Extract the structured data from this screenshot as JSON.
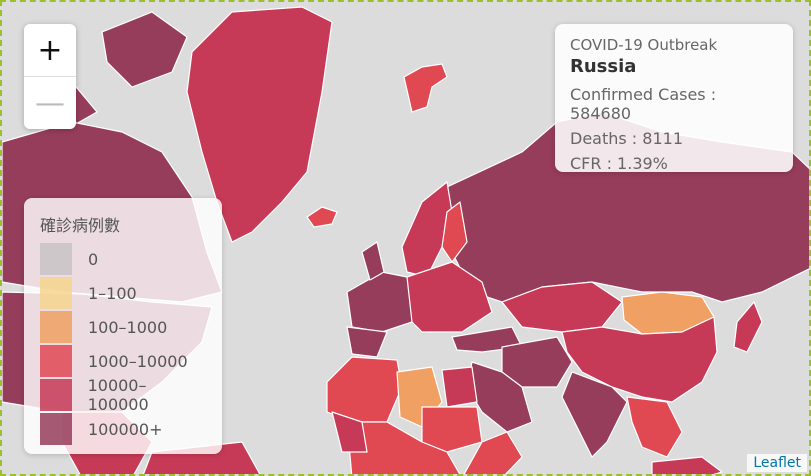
{
  "map": {
    "background": "#dcdcdc",
    "colors": {
      "zero": "#c8c3c4",
      "c1_100": "#f6d58e",
      "c100_1000": "#f0a062",
      "c1000_10000": "#e04852",
      "c10000_100000": "#c73a57",
      "c100000_plus": "#963d5c"
    }
  },
  "zoom": {
    "in_label": "+",
    "out_label": "—"
  },
  "legend": {
    "title": "確診病例數",
    "items": [
      {
        "label": "0",
        "color": "#c8c3c4"
      },
      {
        "label": "1–100",
        "color": "#f6d58e"
      },
      {
        "label": "100–1000",
        "color": "#f0a062"
      },
      {
        "label": "1000–10000",
        "color": "#e04852"
      },
      {
        "label": "10000–100000",
        "color": "#c73a57"
      },
      {
        "label": "100000+",
        "color": "#963d5c"
      }
    ]
  },
  "info": {
    "title": "COVID-19 Outbreak",
    "country": "Russia",
    "confirmed": "Confirmed Cases : 584680",
    "deaths": "Deaths : 8111",
    "cfr": "CFR : 1.39%"
  },
  "attribution": "Leaflet"
}
